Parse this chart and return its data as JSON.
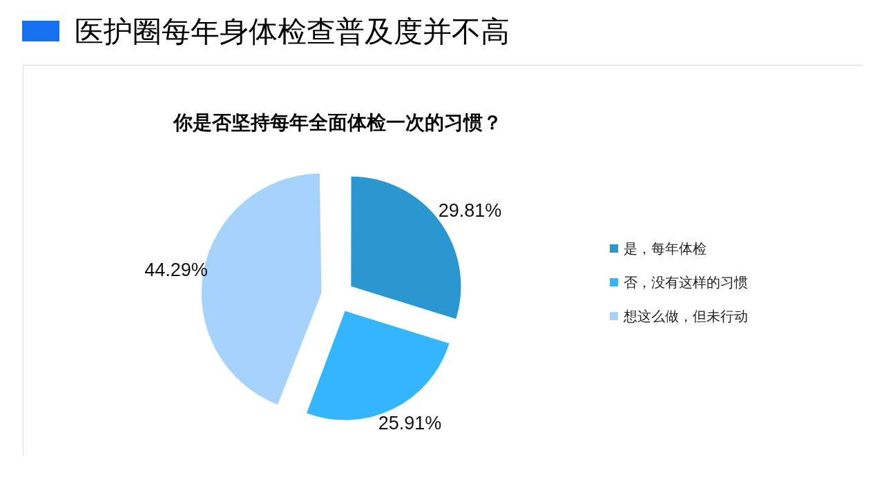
{
  "chart_data": {
    "type": "pie",
    "title": "医护圈每年身体检查普及度并不高",
    "subtitle": "你是否坚持每年全面体检一次的习惯？",
    "categories": [
      "是，每年体检",
      "否，没有这样的习惯",
      "想这么做，但未行动"
    ],
    "values": [
      29.81,
      25.91,
      44.29
    ],
    "colors": [
      "#2b97d1",
      "#33b6fe",
      "#a5d3fc"
    ],
    "value_labels": [
      "29.81%",
      "25.91%",
      "44.29%"
    ],
    "legend": "right"
  }
}
